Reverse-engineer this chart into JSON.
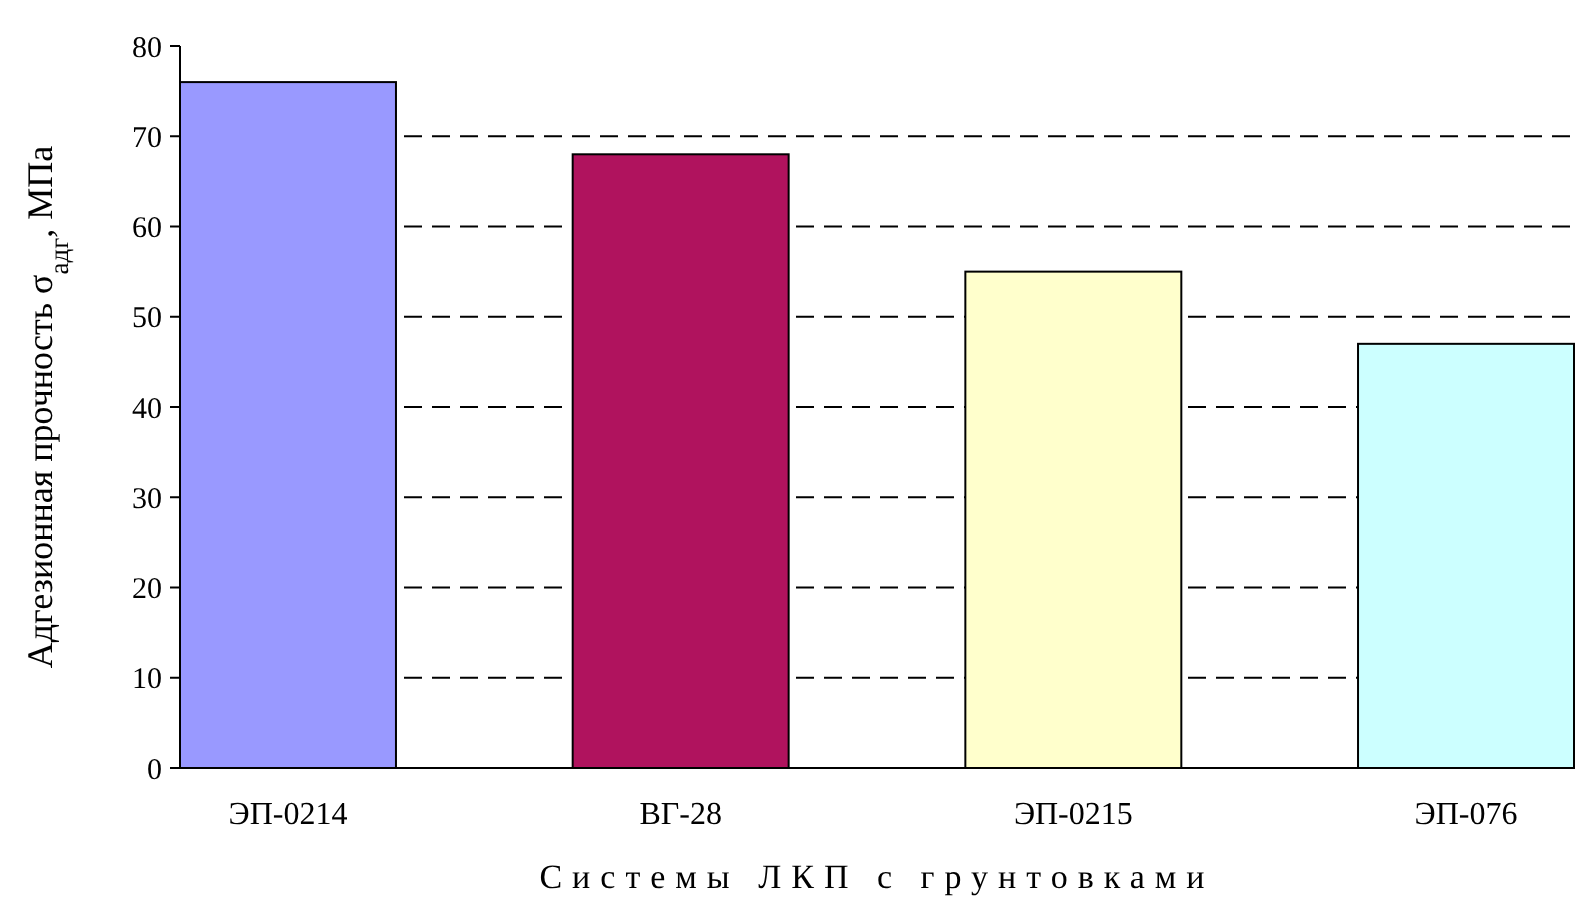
{
  "chart_data": {
    "type": "bar",
    "xlabel": "Системы ЛКП с грунтовками",
    "ylabel": "Адгезионная прочность σ$_{адг}$, МПа",
    "categories": [
      "ЭП-0214",
      "ВГ-28",
      "ЭП-0215",
      "ЭП-076"
    ],
    "values": [
      76,
      68,
      55,
      47
    ],
    "colors": [
      "#9999ff",
      "#b0135e",
      "#ffffcc",
      "#ccffff"
    ],
    "ylim": [
      0,
      80
    ],
    "yticks": [
      0,
      10,
      20,
      30,
      40,
      50,
      60,
      70,
      80
    ],
    "grid": "y"
  }
}
